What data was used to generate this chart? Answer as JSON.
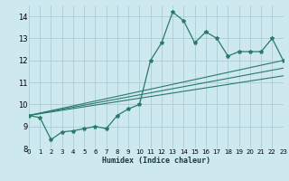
{
  "xlabel": "Humidex (Indice chaleur)",
  "xlim": [
    0,
    23
  ],
  "ylim": [
    8,
    14.5
  ],
  "yticks": [
    8,
    9,
    10,
    11,
    12,
    13,
    14
  ],
  "xticks": [
    0,
    1,
    2,
    3,
    4,
    5,
    6,
    7,
    8,
    9,
    10,
    11,
    12,
    13,
    14,
    15,
    16,
    17,
    18,
    19,
    20,
    21,
    22,
    23
  ],
  "bg_color": "#cde8ee",
  "grid_color": "#aacdd6",
  "line_color": "#2a7a6a",
  "series_main": [
    [
      0,
      9.5
    ],
    [
      1,
      9.4
    ],
    [
      2,
      8.4
    ],
    [
      3,
      8.75
    ],
    [
      4,
      8.8
    ],
    [
      5,
      8.9
    ],
    [
      6,
      9.0
    ],
    [
      7,
      8.9
    ],
    [
      8,
      9.5
    ],
    [
      9,
      9.8
    ],
    [
      10,
      10.0
    ],
    [
      11,
      12.0
    ],
    [
      12,
      12.8
    ],
    [
      13,
      14.2
    ],
    [
      14,
      13.8
    ],
    [
      15,
      12.8
    ],
    [
      16,
      13.3
    ],
    [
      17,
      13.0
    ],
    [
      18,
      12.2
    ],
    [
      19,
      12.4
    ],
    [
      20,
      12.4
    ],
    [
      21,
      12.4
    ],
    [
      22,
      13.0
    ],
    [
      23,
      12.0
    ]
  ],
  "trend_lines": [
    [
      [
        0,
        9.5
      ],
      [
        23,
        12.0
      ]
    ],
    [
      [
        0,
        9.5
      ],
      [
        23,
        11.65
      ]
    ],
    [
      [
        0,
        9.5
      ],
      [
        23,
        11.3
      ]
    ]
  ]
}
